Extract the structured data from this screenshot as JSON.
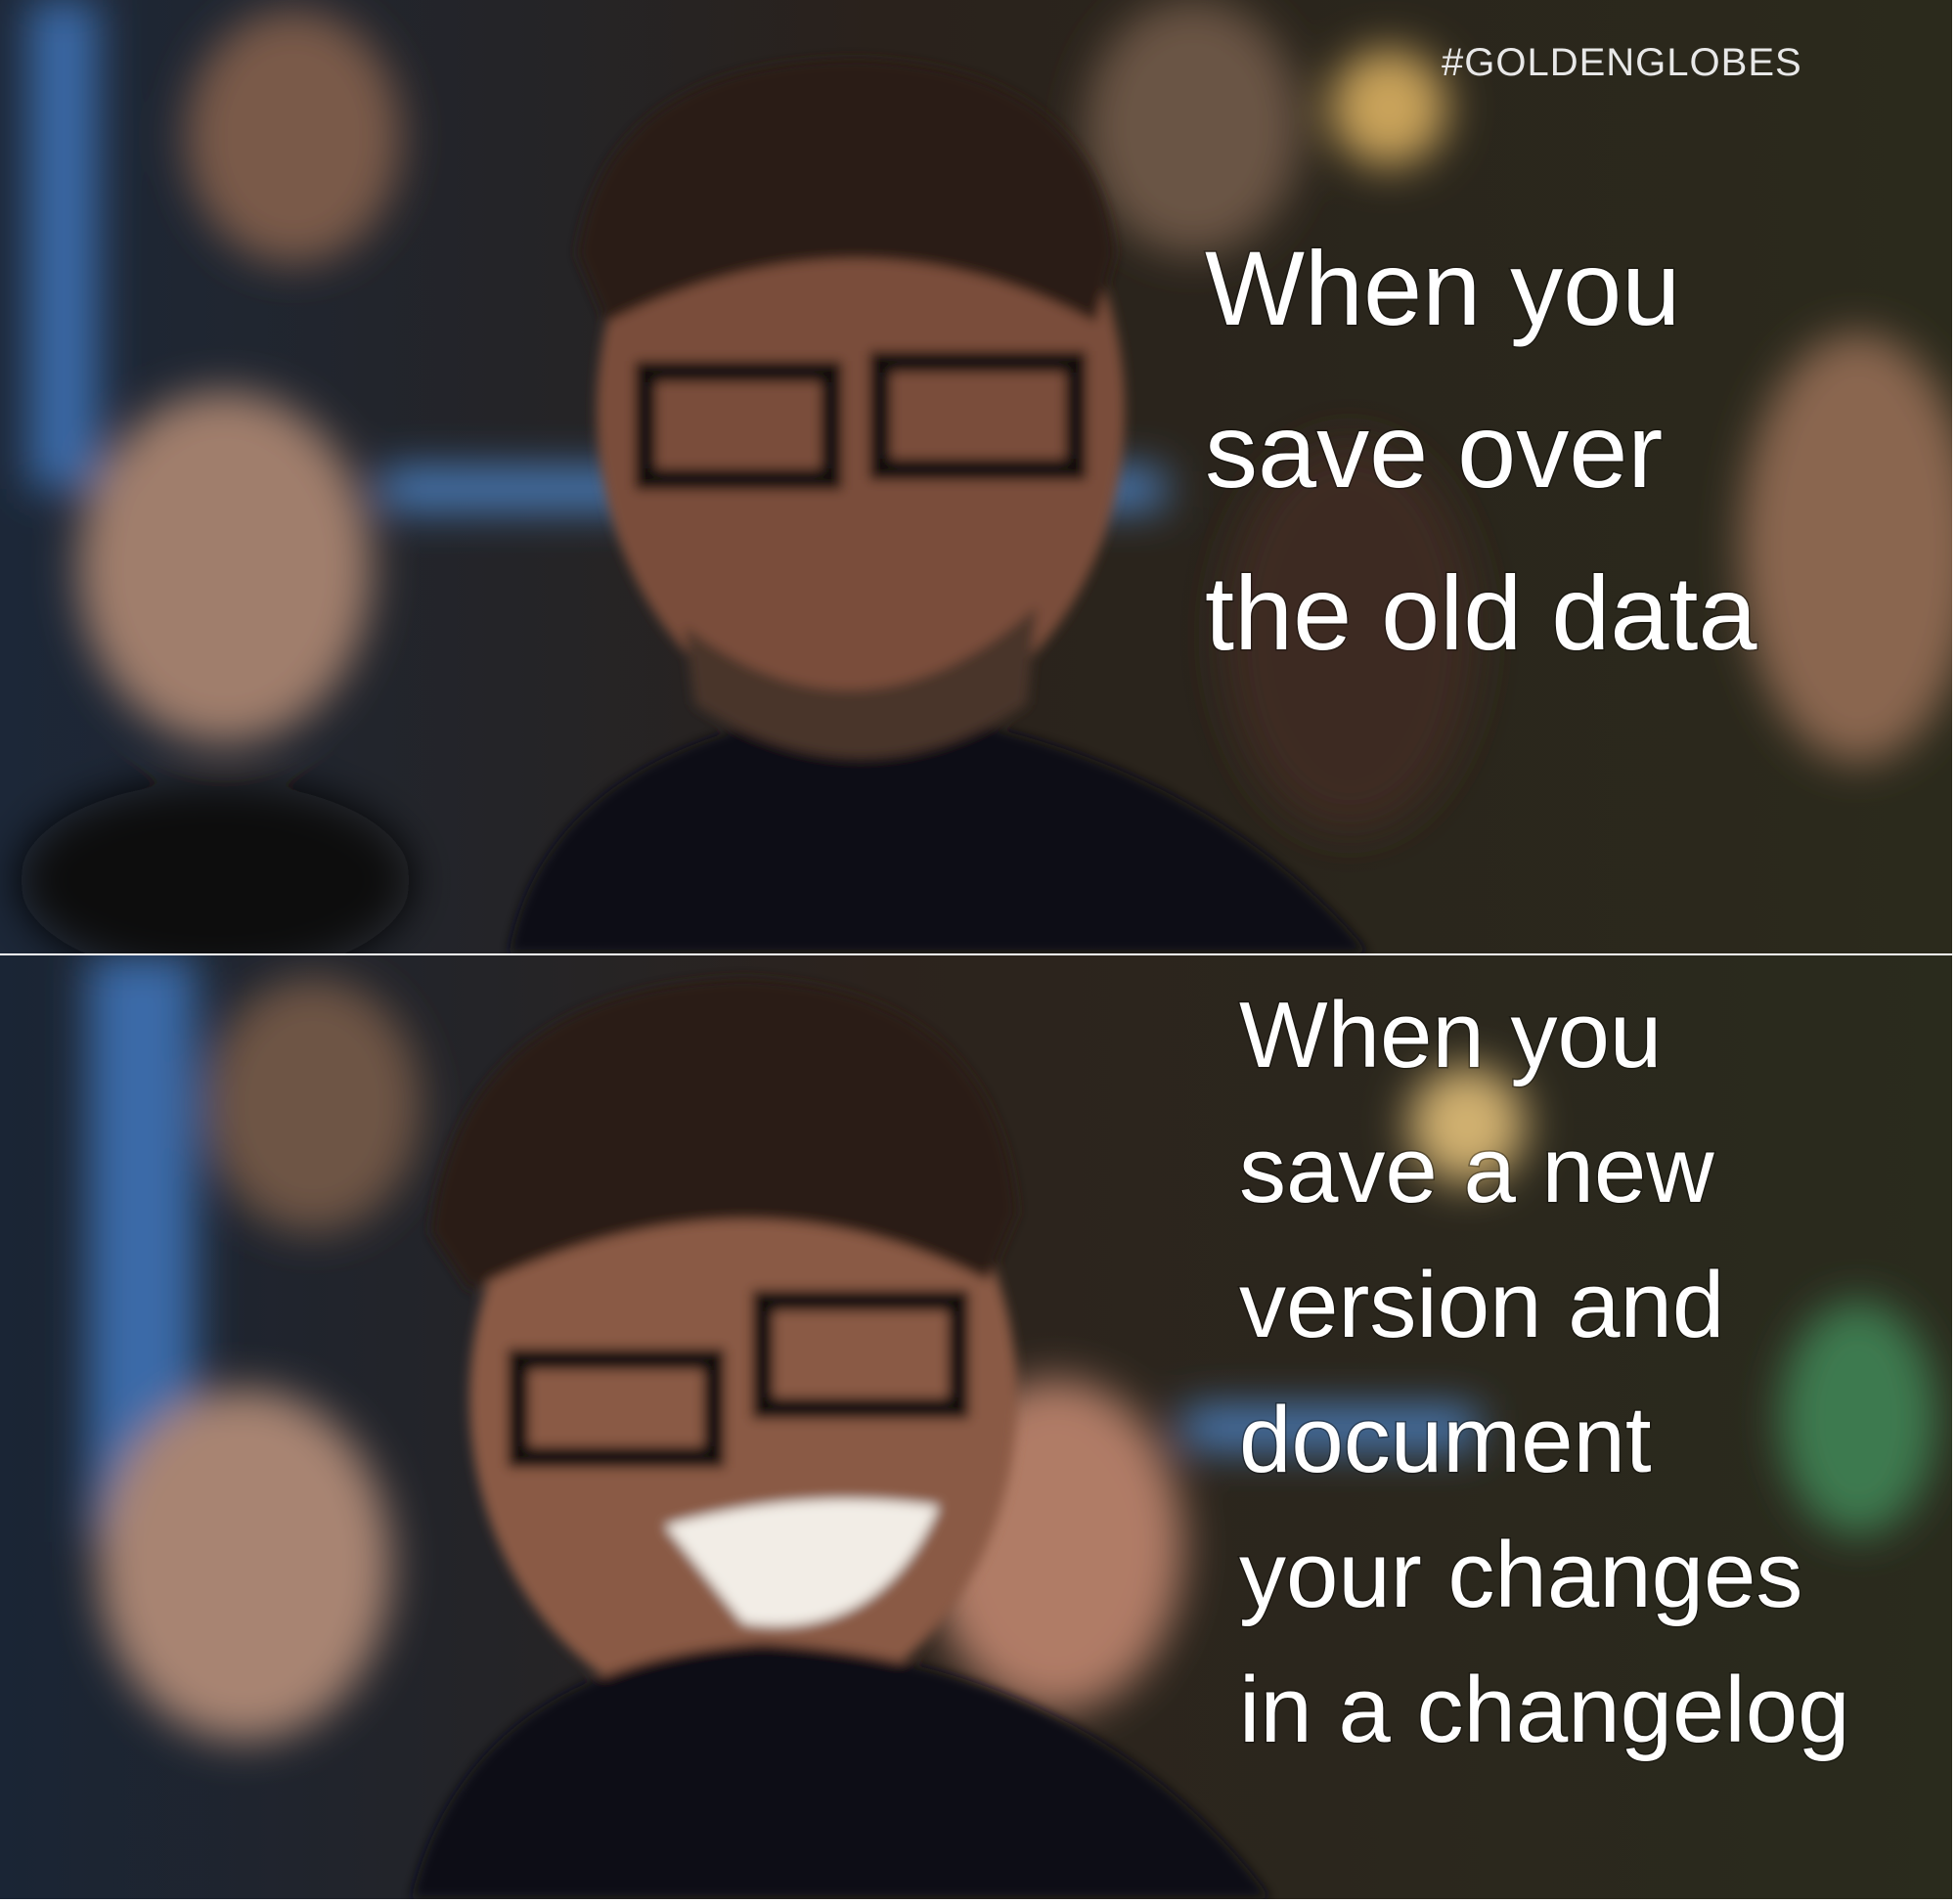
{
  "watermark": "#GOLDENGLOBES",
  "panels": [
    {
      "caption_lines": [
        "When you",
        "save over",
        "the old data"
      ]
    },
    {
      "caption_lines": [
        "When you",
        "save a new",
        "version and",
        "document",
        "your changes",
        "in a changelog"
      ]
    }
  ]
}
